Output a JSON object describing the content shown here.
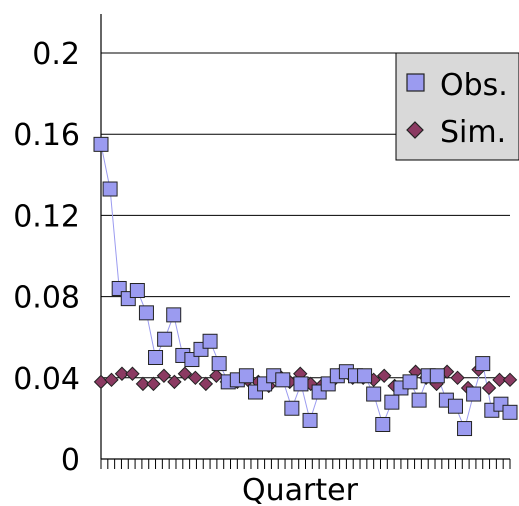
{
  "chart_data": {
    "type": "scatter",
    "title": "",
    "xlabel": "Quarter",
    "ylabel": "",
    "ylim": [
      0,
      0.2
    ],
    "yticks": [
      {
        "value": 0,
        "label": "0"
      },
      {
        "value": 0.04,
        "label": "0.04"
      },
      {
        "value": 0.08,
        "label": "0.08"
      },
      {
        "value": 0.12,
        "label": "0.12"
      },
      {
        "value": 0.16,
        "label": "0.16"
      },
      {
        "value": 0.2,
        "label": "0.2"
      }
    ],
    "grid": "horizontal",
    "legend_position": "top-right",
    "x": [
      1,
      2,
      3,
      4,
      5,
      6,
      7,
      8,
      9,
      10,
      11,
      12,
      13,
      14,
      15,
      16,
      17,
      18,
      19,
      20,
      21,
      22,
      23,
      24,
      25,
      26,
      27,
      28,
      29,
      30,
      31,
      32,
      33,
      34,
      35,
      36,
      37,
      38,
      39,
      40,
      41,
      42,
      43,
      44,
      45,
      46,
      47,
      48,
      49,
      50,
      51,
      52,
      53,
      54,
      55,
      56,
      57,
      58,
      59,
      60
    ],
    "series": [
      {
        "name": "Obs.",
        "color": "#9b9bf0",
        "marker": "square",
        "line": true,
        "values": [
          0.155,
          0.133,
          0.084,
          0.079,
          0.083,
          0.072,
          0.05,
          0.059,
          0.071,
          0.051,
          0.049,
          0.054,
          0.058,
          0.047,
          0.038,
          0.039,
          0.041,
          0.033,
          0.037,
          0.041,
          0.039,
          0.025,
          0.037,
          0.019,
          0.033,
          0.037,
          0.041,
          0.043,
          0.041,
          0.041,
          0.032,
          0.017,
          0.028,
          0.035,
          0.038,
          0.029,
          0.041,
          0.041,
          0.029,
          0.026,
          0.015,
          0.032,
          0.047,
          0.024,
          0.027,
          0.023
        ],
        "x_index_positions": "auto"
      },
      {
        "name": "Sim.",
        "color": "#8b3a62",
        "marker": "diamond",
        "line": false,
        "values": [
          0.038,
          0.039,
          0.042,
          0.042,
          0.037,
          0.037,
          0.041,
          0.038,
          0.042,
          0.04,
          0.037,
          0.041,
          0.038,
          0.038,
          0.039,
          0.038,
          0.036,
          0.041,
          0.038,
          0.042,
          0.037,
          0.036,
          0.038,
          0.043,
          0.04,
          0.04,
          0.039,
          0.041,
          0.036,
          0.036,
          0.043,
          0.04,
          0.037,
          0.043,
          0.04,
          0.035,
          0.044,
          0.035,
          0.039,
          0.039
        ]
      }
    ],
    "x_tick_count": 60
  }
}
